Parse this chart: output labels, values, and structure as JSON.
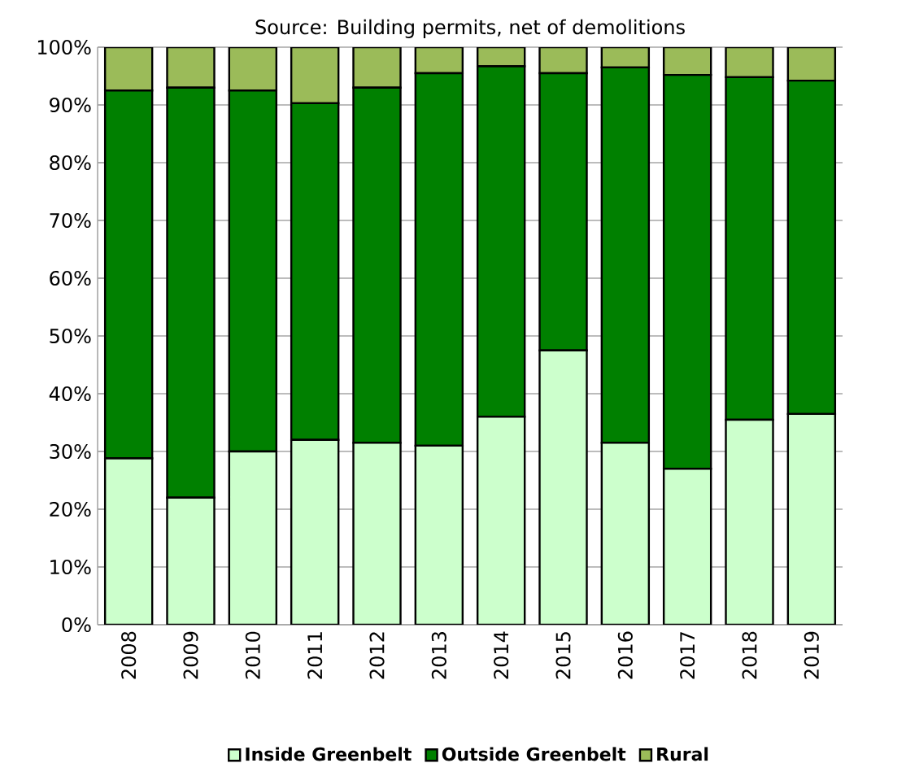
{
  "chart_data": {
    "type": "bar",
    "stacked": true,
    "annotations": [
      "Source: Building permits, net of demolitions"
    ],
    "categories": [
      "2008",
      "2009",
      "2010",
      "2011",
      "2012",
      "2013",
      "2014",
      "2015",
      "2016",
      "2017",
      "2018",
      "2019"
    ],
    "series": [
      {
        "name": "Inside Greenbelt",
        "color": "#ccffcc",
        "values": [
          28.8,
          22,
          30,
          32,
          31.5,
          31,
          36,
          47.5,
          31.5,
          27,
          35.5,
          36.5
        ]
      },
      {
        "name": "Outside Greenbelt",
        "color": "#008000",
        "values": [
          63.7,
          71,
          62.5,
          58.3,
          61.5,
          64.5,
          60.7,
          48,
          65,
          68.2,
          59.3,
          57.7
        ]
      },
      {
        "name": "Rural",
        "color": "#9bbb59",
        "values": [
          7.5,
          7,
          7.5,
          9.7,
          7,
          4.5,
          3.3,
          4.5,
          3.5,
          4.8,
          5.2,
          5.8
        ]
      }
    ],
    "ylim": [
      0,
      100
    ],
    "yticks": [
      {
        "value": 0,
        "label": "0%"
      },
      {
        "value": 10,
        "label": "10%"
      },
      {
        "value": 20,
        "label": "20%"
      },
      {
        "value": 30,
        "label": "30%"
      },
      {
        "value": 40,
        "label": "40%"
      },
      {
        "value": 50,
        "label": "50%"
      },
      {
        "value": 60,
        "label": "60%"
      },
      {
        "value": 70,
        "label": "70%"
      },
      {
        "value": 80,
        "label": "80%"
      },
      {
        "value": 90,
        "label": "90%"
      },
      {
        "value": 100,
        "label": "100%"
      }
    ],
    "grid": "y",
    "legend": "bottom"
  }
}
